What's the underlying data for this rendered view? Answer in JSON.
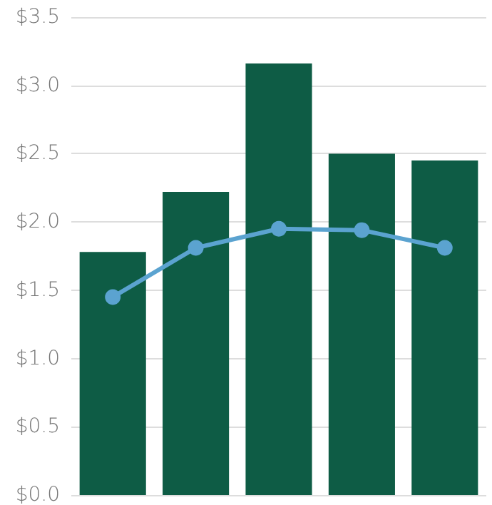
{
  "chart_data": {
    "type": "bar",
    "categories": [
      null,
      null,
      null,
      null,
      null
    ],
    "series": [
      {
        "color": "#0e5c45",
        "values": [
          1.78,
          2.22,
          3.16,
          2.5,
          2.45
        ]
      },
      {
        "type": "line",
        "color": "#5ba3d0",
        "values": [
          1.45,
          1.81,
          1.95,
          1.94,
          1.81
        ]
      }
    ],
    "ylim": [
      0,
      3.5
    ],
    "yticks": [
      {
        "value": 0,
        "label": "$0.0"
      },
      {
        "value": 0.5,
        "label": "$0.5"
      },
      {
        "value": 1,
        "label": "$1.0"
      },
      {
        "value": 1.5,
        "label": "$1.5"
      },
      {
        "value": 2,
        "label": "$2.0"
      },
      {
        "value": 2.5,
        "label": "$2.5"
      },
      {
        "value": 3,
        "label": "$3.0"
      },
      {
        "value": 3.5,
        "label": "$3.5"
      }
    ],
    "grid": "y",
    "marker": "circle",
    "tick_labels": "y"
  }
}
